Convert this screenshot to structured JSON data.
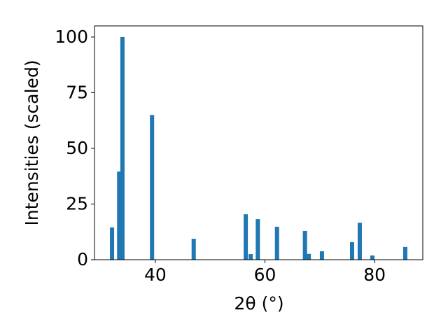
{
  "chart_data": {
    "type": "bar",
    "x_label": "2θ (°)",
    "y_label": "Intensities (scaled)",
    "x": [
      32.1,
      33.4,
      34.0,
      39.4,
      47.0,
      56.5,
      57.4,
      58.7,
      62.2,
      67.3,
      68.0,
      70.4,
      75.9,
      77.3,
      79.6,
      85.6
    ],
    "values": [
      14.5,
      39.6,
      100,
      65,
      9.4,
      20.4,
      2.5,
      18.2,
      14.8,
      12.9,
      2.6,
      3.8,
      7.9,
      16.6,
      1.9,
      5.7
    ],
    "color": "#1f77b4",
    "xlim": [
      28.9,
      88.8
    ],
    "xticks": [
      40,
      60,
      80
    ],
    "ylim": [
      0,
      105
    ],
    "yticks": [
      0,
      25,
      50,
      75,
      100
    ],
    "grid": false
  }
}
